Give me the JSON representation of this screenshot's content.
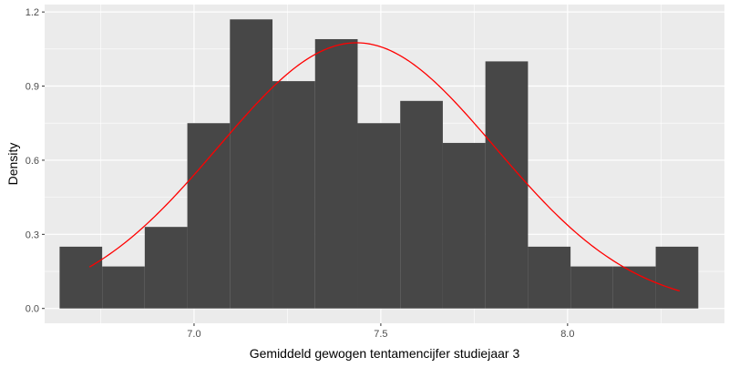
{
  "chart_data": {
    "type": "bar",
    "title": "",
    "xlabel": "Gemiddeld gewogen tentamencijfer studiejaar 3",
    "ylabel": "Density",
    "xlim": [
      6.6,
      8.42
    ],
    "ylim": [
      -0.06,
      1.23
    ],
    "x_ticks": [
      7.0,
      7.5,
      8.0
    ],
    "x_tick_labels": [
      "7.0",
      "7.5",
      "8.0"
    ],
    "y_ticks": [
      0.0,
      0.3,
      0.6,
      0.9,
      1.2
    ],
    "y_tick_labels": [
      "0.0",
      "0.3",
      "0.6",
      "0.9",
      "1.2"
    ],
    "grid": true,
    "bins": [
      {
        "x0": 6.64,
        "x1": 6.754,
        "density": 0.25
      },
      {
        "x0": 6.754,
        "x1": 6.868,
        "density": 0.17
      },
      {
        "x0": 6.868,
        "x1": 6.982,
        "density": 0.33
      },
      {
        "x0": 6.982,
        "x1": 7.096,
        "density": 0.75
      },
      {
        "x0": 7.096,
        "x1": 7.21,
        "density": 1.17
      },
      {
        "x0": 7.21,
        "x1": 7.324,
        "density": 0.92
      },
      {
        "x0": 7.324,
        "x1": 7.438,
        "density": 1.09
      },
      {
        "x0": 7.438,
        "x1": 7.552,
        "density": 0.75
      },
      {
        "x0": 7.552,
        "x1": 7.666,
        "density": 0.84
      },
      {
        "x0": 7.666,
        "x1": 7.78,
        "density": 0.67
      },
      {
        "x0": 7.78,
        "x1": 7.894,
        "density": 1.0
      },
      {
        "x0": 7.894,
        "x1": 8.008,
        "density": 0.25
      },
      {
        "x0": 8.008,
        "x1": 8.122,
        "density": 0.17
      },
      {
        "x0": 8.122,
        "x1": 8.236,
        "density": 0.17
      },
      {
        "x0": 8.236,
        "x1": 8.35,
        "density": 0.25
      }
    ],
    "normal_curve": {
      "mean": 7.435,
      "sd": 0.371,
      "x_range": [
        6.72,
        8.3
      ],
      "color": "#ff0000"
    },
    "colors": {
      "panel_background": "#ebebeb",
      "grid": "#ffffff",
      "bar_fill": "#474747"
    }
  }
}
